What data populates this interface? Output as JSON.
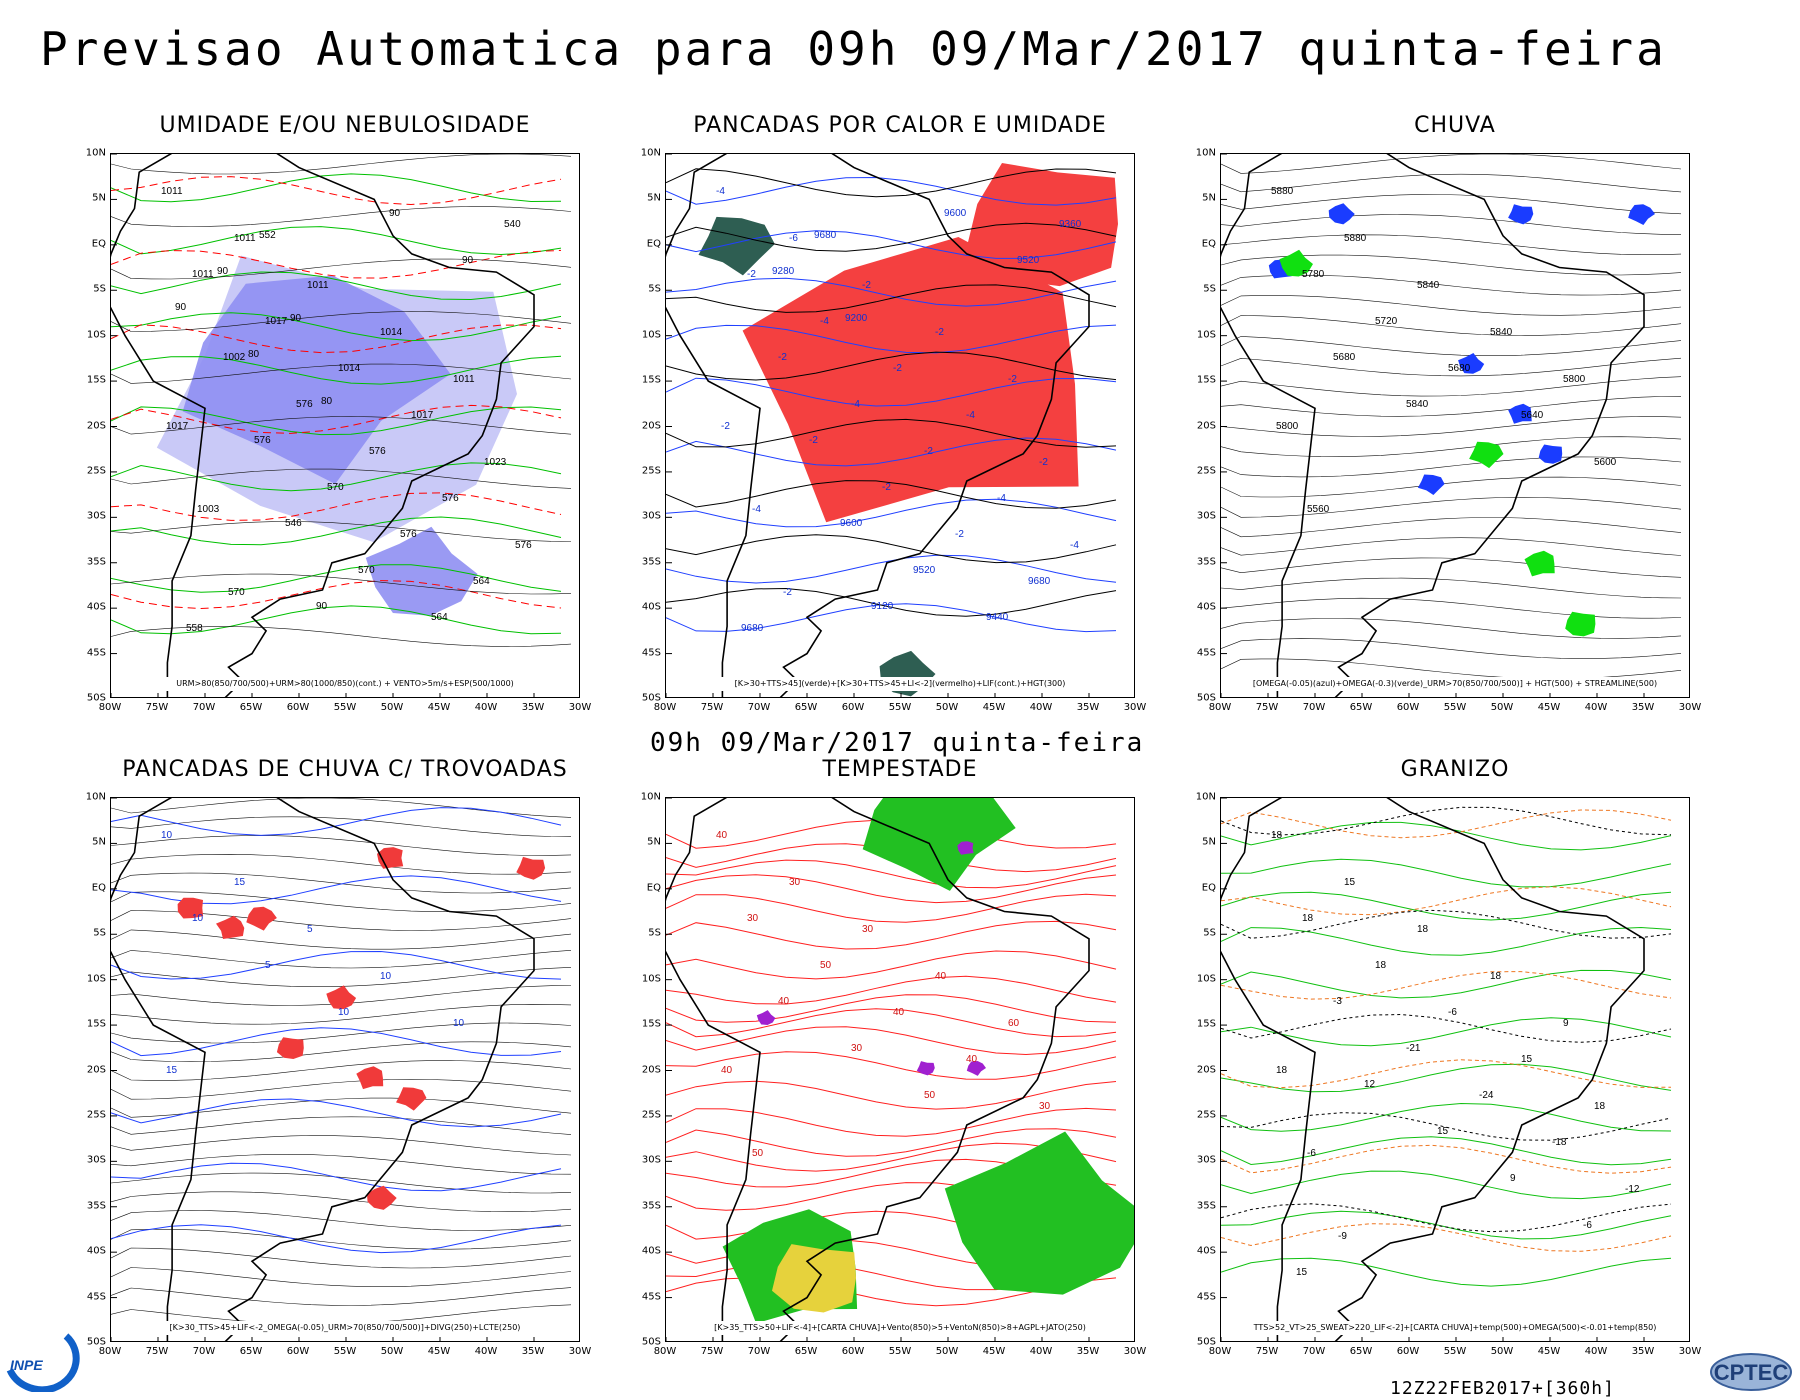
{
  "header": {
    "title": "Previsao Automatica  para 09h 09/Mar/2017 quinta-feira",
    "mid_title": "09h 09/Mar/2017 quinta-feira"
  },
  "axes": {
    "lat": [
      "10N",
      "5N",
      "EQ",
      "5S",
      "10S",
      "15S",
      "20S",
      "25S",
      "30S",
      "35S",
      "40S",
      "45S",
      "50S"
    ],
    "lon": [
      "80W",
      "75W",
      "70W",
      "65W",
      "60W",
      "55W",
      "50W",
      "45W",
      "40W",
      "35W",
      "30W"
    ]
  },
  "panels": [
    {
      "id": "umidade",
      "title": "UMIDADE E/OU NEBULOSIDADE",
      "legend": "URM>80(850/700/500)+URM>80(1000/850)(cont.) + VENTO>5m/s+ESP(500/1000)",
      "labels": [
        "1011",
        "1011",
        "1011",
        "1014",
        "1011",
        "1017",
        "1011",
        "1017",
        "1014",
        "1017",
        "1023",
        "1003",
        "1002",
        "576",
        "576",
        "576",
        "576",
        "570",
        "576",
        "570",
        "576",
        "564",
        "558",
        "552",
        "546",
        "570",
        "564",
        "540",
        "90",
        "90",
        "90",
        "90",
        "90",
        "90",
        "80",
        "80"
      ],
      "colors": {
        "fill": "#8f8ff2",
        "fill_light": "#c9c9f7",
        "contour_green": "#00c000",
        "contour_red": "#ff0000"
      }
    },
    {
      "id": "pancadas_calor",
      "title": "PANCADAS POR CALOR E UMIDADE",
      "legend": "[K>30+TTS>45](verde)+[K>30+TTS>45+LI<-2](vermelho)+LIF(cont.)+HGT(300)",
      "labels": [
        "-4",
        "-6",
        "-2",
        "-2",
        "-2",
        "-2",
        "-2",
        "-4",
        "-2",
        "-4",
        "-2",
        "-4",
        "-2",
        "-4",
        "-2",
        "-4",
        "-4",
        "-2",
        "-2",
        "-2",
        "-2",
        "9680",
        "9680",
        "9680",
        "9600",
        "9520",
        "9440",
        "9360",
        "9280",
        "9200",
        "9120",
        "9600",
        "9520"
      ],
      "colors": {
        "fill_red": "#f44040",
        "fill_green": "#2e5e52",
        "contour_blue": "#2040ff"
      }
    },
    {
      "id": "chuva",
      "title": "CHUVA",
      "legend": "[OMEGA(-0.05)(azul)+OMEGA(-0.3)(verde)_URM>70(850/700/500)] + HGT(500) + STREAMLINE(500)",
      "labels": [
        "5880",
        "5880",
        "5840",
        "5840",
        "5800",
        "5800",
        "5780",
        "5720",
        "5680",
        "5640",
        "5600",
        "5560",
        "5680",
        "5840"
      ],
      "colors": {
        "fill_blue": "#1a3cff",
        "fill_green": "#10e010"
      }
    },
    {
      "id": "pancadas_trovoadas",
      "title": "PANCADAS DE CHUVA C/ TROVOADAS",
      "legend": "[K>30_TTS>45+LIF<-2_OMEGA(-0.05)_URM>70(850/700/500)]+DIVG(250)+LCTE(250)",
      "labels": [
        "10",
        "15",
        "5",
        "10",
        "10",
        "15",
        "10",
        "5",
        "10"
      ],
      "colors": {
        "fill_red": "#f03a3a",
        "contour_blue": "#2040ff"
      }
    },
    {
      "id": "tempestade",
      "title": "TEMPESTADE",
      "legend": "[K>35_TTS>50+LIF<-4]+[CARTA CHUVA]+Vento(850)>5+VentoN(850)>8+AGPL+JATO(250)",
      "labels": [
        "40",
        "30",
        "30",
        "40",
        "60",
        "40",
        "30",
        "50",
        "40",
        "40",
        "30",
        "50",
        "40",
        "30",
        "50"
      ],
      "colors": {
        "fill_green": "#22c022",
        "fill_yellow": "#e6d23c",
        "fill_purple": "#a020d0",
        "contour_red": "#ff2020"
      }
    },
    {
      "id": "granizo",
      "title": "GRANIZO",
      "legend": "TTS>52_VT>25_SWEAT>220_LIF<-2]+[CARTA CHUVA]+temp(500)+OMEGA(500)<-0.01+temp(850)",
      "labels": [
        "18",
        "15",
        "18",
        "18",
        "9",
        "18",
        "18",
        "18",
        "-6",
        "15",
        "18",
        "-6",
        "-3",
        "-21",
        "-24",
        "-18",
        "-12",
        "-9",
        "12",
        "15",
        "9",
        "-6",
        "15"
      ],
      "colors": {
        "contour_green": "#10c010",
        "contour_orange": "#ee7722",
        "contour_black": "#000000"
      }
    }
  ],
  "footer": {
    "run": "12Z22FEB2017+[360h]",
    "logo_left": "INPE",
    "logo_right": "CPTEC"
  }
}
